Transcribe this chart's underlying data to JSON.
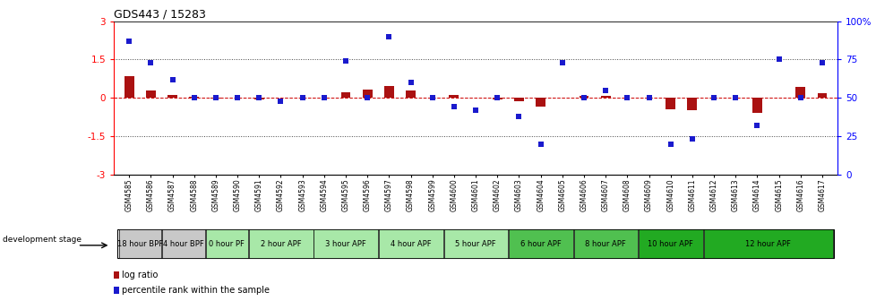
{
  "title": "GDS443 / 15283",
  "samples": [
    "GSM4585",
    "GSM4586",
    "GSM4587",
    "GSM4588",
    "GSM4589",
    "GSM4590",
    "GSM4591",
    "GSM4592",
    "GSM4593",
    "GSM4594",
    "GSM4595",
    "GSM4596",
    "GSM4597",
    "GSM4598",
    "GSM4599",
    "GSM4600",
    "GSM4601",
    "GSM4602",
    "GSM4603",
    "GSM4604",
    "GSM4605",
    "GSM4606",
    "GSM4607",
    "GSM4608",
    "GSM4609",
    "GSM4610",
    "GSM4611",
    "GSM4612",
    "GSM4613",
    "GSM4614",
    "GSM4615",
    "GSM4616",
    "GSM4617"
  ],
  "log_ratios": [
    0.85,
    0.3,
    0.1,
    0.03,
    -0.04,
    0.02,
    -0.07,
    0.02,
    0.01,
    0.02,
    0.22,
    0.32,
    0.45,
    0.28,
    0.02,
    0.12,
    0.01,
    -0.08,
    -0.12,
    -0.35,
    0.02,
    0.06,
    0.08,
    0.02,
    0.01,
    -0.45,
    -0.5,
    0.01,
    0.01,
    -0.6,
    0.01,
    0.42,
    0.18
  ],
  "percentile_ranks": [
    87,
    73,
    62,
    50,
    50,
    50,
    50,
    48,
    50,
    50,
    74,
    50,
    90,
    60,
    50,
    44,
    42,
    50,
    38,
    20,
    73,
    50,
    55,
    50,
    50,
    20,
    23,
    50,
    50,
    32,
    75,
    50,
    73
  ],
  "groups": [
    {
      "label": "18 hour BPF",
      "start": 0,
      "end": 2,
      "color": "#c8c8c8"
    },
    {
      "label": "4 hour BPF",
      "start": 2,
      "end": 4,
      "color": "#c8c8c8"
    },
    {
      "label": "0 hour PF",
      "start": 4,
      "end": 6,
      "color": "#a8e8a8"
    },
    {
      "label": "2 hour APF",
      "start": 6,
      "end": 9,
      "color": "#a8e8a8"
    },
    {
      "label": "3 hour APF",
      "start": 9,
      "end": 12,
      "color": "#a8e8a8"
    },
    {
      "label": "4 hour APF",
      "start": 12,
      "end": 15,
      "color": "#a8e8a8"
    },
    {
      "label": "5 hour APF",
      "start": 15,
      "end": 18,
      "color": "#a8e8a8"
    },
    {
      "label": "6 hour APF",
      "start": 18,
      "end": 21,
      "color": "#50c050"
    },
    {
      "label": "8 hour APF",
      "start": 21,
      "end": 24,
      "color": "#50c050"
    },
    {
      "label": "10 hour APF",
      "start": 24,
      "end": 27,
      "color": "#22aa22"
    },
    {
      "label": "12 hour APF",
      "start": 27,
      "end": 33,
      "color": "#22aa22"
    }
  ],
  "ylim": [
    -3,
    3
  ],
  "yticks_left": [
    -3,
    -1.5,
    0,
    1.5,
    3
  ],
  "yticks_right": [
    0,
    25,
    50,
    75,
    100
  ],
  "bar_color": "#aa1111",
  "scatter_color": "#1a1acd",
  "bg_color": "#ffffff",
  "dotted_line_color": "#444444",
  "zero_line_color": "#cc0000"
}
